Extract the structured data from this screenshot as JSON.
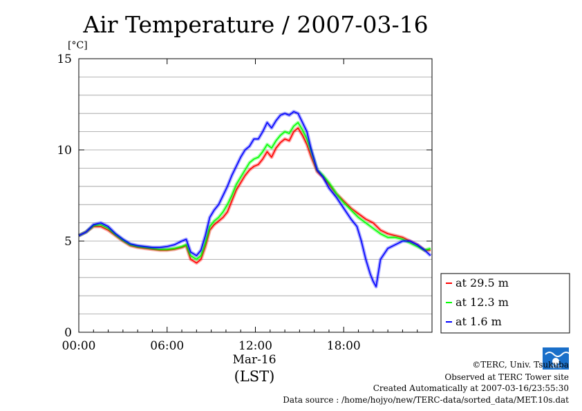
{
  "chart_data": {
    "type": "line",
    "title": "Air Temperature / 2007-03-16",
    "y_unit": "[°C]",
    "ylim": [
      0,
      15
    ],
    "y_ticks": [
      0,
      5,
      10,
      15
    ],
    "y_gridlines": [
      1,
      2,
      3,
      4,
      5,
      6,
      7,
      8,
      9,
      10,
      11,
      12,
      13,
      14
    ],
    "xlim": [
      0,
      24
    ],
    "x_ticks": [
      {
        "value": 0,
        "label": "00:00"
      },
      {
        "value": 6,
        "label": "06:00"
      },
      {
        "value": 12,
        "label": "12:00"
      },
      {
        "value": 18,
        "label": "18:00"
      }
    ],
    "x_sublabel": "Mar-16",
    "x_label": "(LST)",
    "grid": true,
    "legend_position": "right",
    "series": [
      {
        "name": "at 29.5 m",
        "color": "#ff0000",
        "x": [
          0,
          0.5,
          1,
          1.5,
          2,
          2.5,
          3,
          3.5,
          4,
          4.5,
          5,
          5.5,
          6,
          6.5,
          7,
          7.3,
          7.6,
          7.8,
          8,
          8.3,
          8.6,
          8.9,
          9.2,
          9.5,
          9.8,
          10.1,
          10.4,
          10.7,
          11,
          11.3,
          11.6,
          11.9,
          12.2,
          12.5,
          12.8,
          13.1,
          13.4,
          13.7,
          14,
          14.3,
          14.6,
          14.9,
          15.2,
          15.5,
          15.8,
          16.2,
          16.6,
          17,
          17.5,
          18,
          18.5,
          19,
          19.5,
          20,
          20.5,
          21,
          21.5,
          22,
          22.5,
          23,
          23.5,
          23.9
        ],
        "values": [
          5.3,
          5.5,
          5.8,
          5.8,
          5.6,
          5.3,
          5.0,
          4.75,
          4.65,
          4.6,
          4.55,
          4.5,
          4.5,
          4.55,
          4.65,
          4.75,
          4.0,
          3.9,
          3.8,
          4.0,
          4.7,
          5.6,
          5.9,
          6.1,
          6.3,
          6.6,
          7.2,
          7.8,
          8.2,
          8.6,
          8.9,
          9.1,
          9.2,
          9.5,
          9.9,
          9.6,
          10.1,
          10.4,
          10.6,
          10.5,
          11.0,
          11.2,
          10.8,
          10.3,
          9.6,
          8.8,
          8.5,
          8.1,
          7.6,
          7.2,
          6.8,
          6.5,
          6.2,
          6.0,
          5.6,
          5.4,
          5.3,
          5.2,
          5.0,
          4.8,
          4.5,
          4.5
        ]
      },
      {
        "name": "at 12.3 m",
        "color": "#00ff00",
        "x": [
          0,
          0.5,
          1,
          1.5,
          2,
          2.5,
          3,
          3.5,
          4,
          4.5,
          5,
          5.5,
          6,
          6.5,
          7,
          7.3,
          7.6,
          7.8,
          8,
          8.3,
          8.6,
          8.9,
          9.2,
          9.5,
          9.8,
          10.1,
          10.4,
          10.7,
          11,
          11.3,
          11.6,
          11.9,
          12.2,
          12.5,
          12.8,
          13.1,
          13.4,
          13.7,
          14,
          14.3,
          14.6,
          14.9,
          15.2,
          15.5,
          15.8,
          16.2,
          16.6,
          17,
          17.5,
          18,
          18.5,
          19,
          19.5,
          20,
          20.5,
          21,
          21.5,
          22,
          22.5,
          23,
          23.5,
          23.9
        ],
        "values": [
          5.3,
          5.5,
          5.85,
          5.9,
          5.7,
          5.35,
          5.05,
          4.8,
          4.7,
          4.65,
          4.6,
          4.55,
          4.55,
          4.6,
          4.7,
          4.8,
          4.2,
          4.1,
          4.0,
          4.2,
          4.9,
          5.8,
          6.1,
          6.3,
          6.6,
          7.0,
          7.5,
          8.1,
          8.5,
          8.9,
          9.3,
          9.5,
          9.6,
          9.9,
          10.3,
          10.1,
          10.5,
          10.8,
          11.0,
          10.9,
          11.3,
          11.5,
          11.1,
          10.6,
          9.9,
          8.9,
          8.6,
          8.2,
          7.6,
          7.1,
          6.7,
          6.3,
          6.0,
          5.7,
          5.4,
          5.2,
          5.2,
          5.1,
          4.9,
          4.7,
          4.5,
          4.6
        ]
      },
      {
        "name": "at 1.6 m",
        "color": "#0000ff",
        "x": [
          0,
          0.5,
          1,
          1.5,
          2,
          2.5,
          3,
          3.5,
          4,
          4.5,
          5,
          5.5,
          6,
          6.5,
          7,
          7.3,
          7.6,
          7.8,
          8,
          8.3,
          8.6,
          8.9,
          9.2,
          9.5,
          9.8,
          10.1,
          10.4,
          10.7,
          11,
          11.3,
          11.6,
          11.9,
          12.2,
          12.5,
          12.8,
          13.1,
          13.4,
          13.7,
          14,
          14.3,
          14.6,
          14.9,
          15.2,
          15.5,
          15.8,
          16.2,
          16.6,
          17,
          17.5,
          18,
          18.5,
          18.9,
          19.2,
          19.5,
          19.8,
          20.0,
          20.2,
          20.5,
          21,
          21.5,
          22,
          22.5,
          23,
          23.5,
          23.9
        ],
        "values": [
          5.3,
          5.5,
          5.9,
          6.0,
          5.8,
          5.4,
          5.1,
          4.85,
          4.75,
          4.7,
          4.65,
          4.65,
          4.7,
          4.8,
          5.0,
          5.1,
          4.4,
          4.3,
          4.2,
          4.5,
          5.3,
          6.3,
          6.7,
          7.0,
          7.5,
          8.0,
          8.6,
          9.1,
          9.6,
          10.0,
          10.2,
          10.6,
          10.6,
          11.0,
          11.5,
          11.2,
          11.6,
          11.9,
          12.0,
          11.9,
          12.1,
          12.0,
          11.5,
          11.0,
          10.0,
          8.9,
          8.5,
          7.9,
          7.4,
          6.8,
          6.2,
          5.8,
          5.0,
          4.0,
          3.2,
          2.8,
          2.5,
          4.0,
          4.6,
          4.8,
          5.0,
          5.0,
          4.8,
          4.5,
          4.2
        ]
      }
    ]
  },
  "footer": {
    "copyright": "©TERC, Univ. Tsukuba",
    "observed": "Observed at TERC Tower site",
    "created": "Created Automatically at 2007-03-16/23:55:30",
    "source": "Data source : /home/hojyo/new/TERC-data/sorted_data/MET.10s.dat",
    "logo_text": "TERC"
  }
}
